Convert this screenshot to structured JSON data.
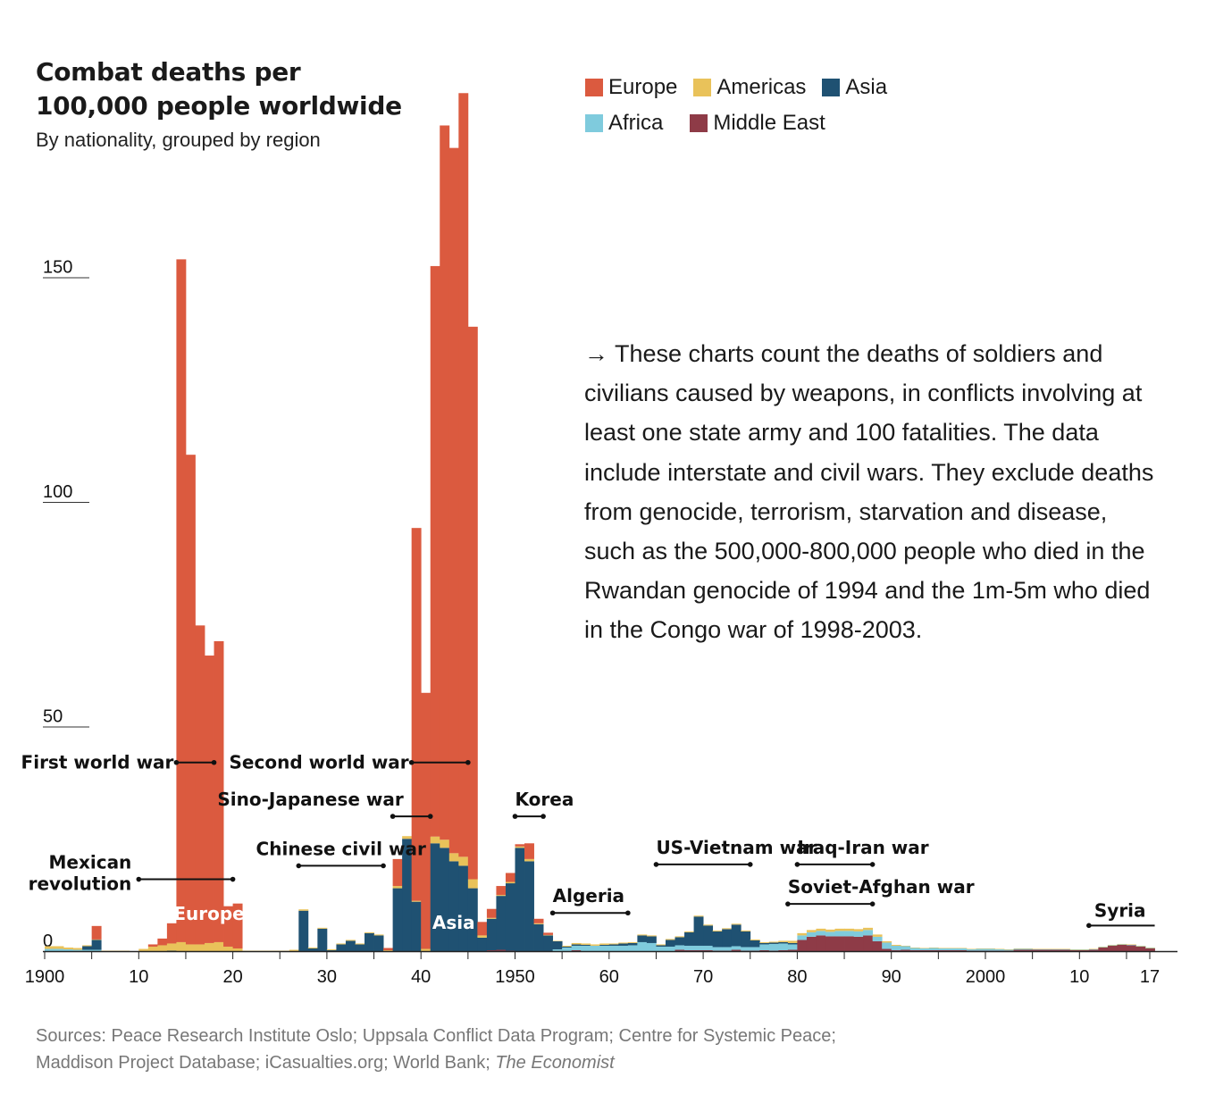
{
  "title": "Combat deaths per 100,000 people worldwide",
  "subtitle": "By nationality, grouped by region",
  "legend": [
    {
      "name": "Europe",
      "color": "#db5a3f"
    },
    {
      "name": "Americas",
      "color": "#e9c25a"
    },
    {
      "name": "Asia",
      "color": "#1f5172"
    },
    {
      "name": "Africa",
      "color": "#7fcbdd"
    },
    {
      "name": "Middle East",
      "color": "#8e3b47"
    }
  ],
  "note": "→ These charts count the deaths of soldiers and civilians caused by weapons, in conflicts involving at least one state army and 100 fatalities. The data include interstate and civil wars. They exclude deaths from genocide, terrorism, starvation and disease, such as the 500,000-800,000 people who died in the Rwandan genocide of 1994 and the 1m-5m who died in the Congo war of 1998-2003.",
  "sources_text": "Sources: Peace Research Institute Oslo; Uppsala Conflict Data Program; Centre for Systemic Peace; Maddison Project Database; iCasualties.org; World Bank; ",
  "sources_italic": "The Economist",
  "chart_data": {
    "type": "bar",
    "stacked": true,
    "x_start": 1900,
    "x_end": 2017,
    "ylim": [
      0,
      160
    ],
    "y_ticks": [
      0,
      50,
      100,
      150
    ],
    "x_ticks": [
      {
        "year": 1900,
        "label": "1900"
      },
      {
        "year": 1910,
        "label": "10"
      },
      {
        "year": 1920,
        "label": "20"
      },
      {
        "year": 1930,
        "label": "30"
      },
      {
        "year": 1940,
        "label": "40"
      },
      {
        "year": 1950,
        "label": "1950"
      },
      {
        "year": 1960,
        "label": "60"
      },
      {
        "year": 1970,
        "label": "70"
      },
      {
        "year": 1980,
        "label": "80"
      },
      {
        "year": 1990,
        "label": "90"
      },
      {
        "year": 2000,
        "label": "2000"
      },
      {
        "year": 2010,
        "label": "10"
      },
      {
        "year": 2017,
        "label": "17"
      }
    ],
    "years": [
      1900,
      1901,
      1902,
      1903,
      1904,
      1905,
      1906,
      1907,
      1908,
      1909,
      1910,
      1911,
      1912,
      1913,
      1914,
      1915,
      1916,
      1917,
      1918,
      1919,
      1920,
      1921,
      1922,
      1923,
      1924,
      1925,
      1926,
      1927,
      1928,
      1929,
      1930,
      1931,
      1932,
      1933,
      1934,
      1935,
      1936,
      1937,
      1938,
      1939,
      1940,
      1941,
      1942,
      1943,
      1944,
      1945,
      1946,
      1947,
      1948,
      1949,
      1950,
      1951,
      1952,
      1953,
      1954,
      1955,
      1956,
      1957,
      1958,
      1959,
      1960,
      1961,
      1962,
      1963,
      1964,
      1965,
      1966,
      1967,
      1968,
      1969,
      1970,
      1971,
      1972,
      1973,
      1974,
      1975,
      1976,
      1977,
      1978,
      1979,
      1980,
      1981,
      1982,
      1983,
      1984,
      1985,
      1986,
      1987,
      1988,
      1989,
      1990,
      1991,
      1992,
      1993,
      1994,
      1995,
      1996,
      1997,
      1998,
      1999,
      2000,
      2001,
      2002,
      2003,
      2004,
      2005,
      2006,
      2007,
      2008,
      2009,
      2010,
      2011,
      2012,
      2013,
      2014,
      2015,
      2016,
      2017
    ],
    "series": [
      {
        "name": "Middle East",
        "values": [
          0,
          0,
          0,
          0,
          0,
          0,
          0,
          0,
          0,
          0,
          0,
          0,
          0,
          0,
          0,
          0,
          0,
          0,
          0,
          0,
          0,
          0,
          0,
          0,
          0,
          0,
          0,
          0,
          0,
          0,
          0,
          0,
          0,
          0,
          0,
          0,
          0,
          0,
          0,
          0,
          0,
          0,
          0,
          0,
          0,
          0,
          0,
          0.2,
          0.3,
          0.1,
          0,
          0,
          0,
          0,
          0,
          0,
          0.2,
          0,
          0,
          0,
          0,
          0,
          0,
          0,
          0,
          0,
          0,
          0.3,
          0.2,
          0.2,
          0.2,
          0.1,
          0.1,
          0.3,
          0.1,
          0.1,
          0.2,
          0.1,
          0.2,
          0.3,
          2.5,
          3.2,
          3.5,
          3.3,
          3.3,
          3.3,
          3.2,
          3.5,
          2.2,
          0.5,
          0.2,
          0.3,
          0.2,
          0.2,
          0.2,
          0.2,
          0.2,
          0.2,
          0.1,
          0.1,
          0.1,
          0.1,
          0.1,
          0.3,
          0.3,
          0.3,
          0.3,
          0.3,
          0.3,
          0.2,
          0.2,
          0.3,
          0.8,
          1.2,
          1.4,
          1.3,
          1.0,
          0.6
        ]
      },
      {
        "name": "Africa",
        "values": [
          0.5,
          0.5,
          0.4,
          0.3,
          0.3,
          0.3,
          0,
          0,
          0,
          0,
          0,
          0,
          0,
          0,
          0,
          0,
          0,
          0,
          0,
          0,
          0,
          0,
          0,
          0,
          0,
          0,
          0,
          0,
          0,
          0,
          0,
          0,
          0,
          0,
          0,
          0,
          0,
          0,
          0,
          0,
          0,
          0,
          0,
          0,
          0,
          0,
          0,
          0,
          0,
          0,
          0,
          0,
          0,
          0,
          0.4,
          0.8,
          1.0,
          1.2,
          1.2,
          1.2,
          1.2,
          1.2,
          1.3,
          2.0,
          1.8,
          1.0,
          1.0,
          1.0,
          1.0,
          1.0,
          1.0,
          0.8,
          0.8,
          0.8,
          0.8,
          0.8,
          1.3,
          1.5,
          1.5,
          1.2,
          1.0,
          1.0,
          1.0,
          1.0,
          1.2,
          1.2,
          1.2,
          1.2,
          1.0,
          1.4,
          1.0,
          0.8,
          0.5,
          0.4,
          0.5,
          0.4,
          0.4,
          0.4,
          0.3,
          0.4,
          0.4,
          0.3,
          0.2,
          0.2,
          0.2,
          0.1,
          0.1,
          0.1,
          0.1,
          0.1,
          0.1,
          0.1,
          0.1,
          0.1,
          0.1,
          0.1,
          0.1,
          0.1
        ]
      },
      {
        "name": "Asia",
        "values": [
          0,
          0,
          0,
          0,
          0.8,
          2.2,
          0,
          0,
          0,
          0,
          0,
          0,
          0,
          0.1,
          0,
          0,
          0,
          0,
          0,
          0,
          0,
          0,
          0,
          0,
          0,
          0,
          0,
          9,
          0.6,
          5,
          0.2,
          1.5,
          2.3,
          1.5,
          4,
          3.5,
          0,
          14,
          25,
          11,
          0,
          24,
          23,
          20,
          19,
          14,
          3,
          7,
          12,
          15,
          23,
          20,
          6,
          3.5,
          1.8,
          0.2,
          0.3,
          0.2,
          0,
          0.2,
          0.3,
          0.5,
          0.5,
          1.5,
          1.5,
          0.3,
          1.5,
          1.8,
          3.0,
          6.5,
          4.5,
          3.5,
          4.0,
          4.8,
          3.5,
          1.5,
          0.3,
          0.3,
          0.3,
          0.3,
          0,
          0,
          0,
          0,
          0,
          0,
          0,
          0,
          0,
          0,
          0,
          0,
          0,
          0,
          0,
          0,
          0,
          0,
          0,
          0,
          0,
          0,
          0,
          0,
          0,
          0,
          0,
          0,
          0,
          0,
          0,
          0,
          0,
          0,
          0,
          0,
          0,
          0
        ]
      },
      {
        "name": "Americas",
        "values": [
          0.6,
          0.6,
          0.4,
          0.4,
          0.2,
          0.1,
          0.1,
          0.1,
          0.1,
          0,
          0.5,
          1.0,
          1.3,
          1.6,
          2.0,
          1.5,
          1.5,
          1.8,
          2.0,
          1.0,
          0.6,
          0.1,
          0.1,
          0.1,
          0.1,
          0.1,
          0.3,
          0.3,
          0.2,
          0.2,
          0.2,
          0.2,
          0.2,
          0.2,
          0.2,
          0.2,
          0.2,
          0.5,
          0.6,
          0.2,
          0.5,
          1.5,
          1.8,
          1.8,
          2.0,
          2.0,
          0.5,
          0.2,
          0.2,
          0.3,
          0.3,
          0.5,
          0.2,
          0.1,
          0.1,
          0.2,
          0.3,
          0.3,
          0.3,
          0.3,
          0.2,
          0.2,
          0.2,
          0.2,
          0.2,
          0.2,
          0.2,
          0.2,
          0.2,
          0.2,
          0.2,
          0.2,
          0.2,
          0.2,
          0.2,
          0.2,
          0.2,
          0.2,
          0.3,
          0.5,
          0.5,
          0.5,
          0.5,
          0.5,
          0.5,
          0.5,
          0.5,
          0.5,
          0.5,
          0.3,
          0.2,
          0.1,
          0.1,
          0.1,
          0.1,
          0.1,
          0.1,
          0.1,
          0.1,
          0.1,
          0.1,
          0.1,
          0.1,
          0.1,
          0.1,
          0.1,
          0.1,
          0.1,
          0.1,
          0.1,
          0.1,
          0.1,
          0.1,
          0.1,
          0.1,
          0.1,
          0.1,
          0.1
        ]
      },
      {
        "name": "Europe",
        "values": [
          0,
          0,
          0,
          0,
          0,
          3.0,
          0,
          0,
          0,
          0,
          0,
          0.5,
          1.5,
          4.5,
          152,
          109,
          71,
          64,
          67,
          9,
          10,
          0,
          0,
          0,
          0,
          0,
          0,
          0,
          0,
          0,
          0,
          0,
          0,
          0,
          0,
          0,
          0,
          0,
          0,
          0,
          0,
          0,
          0,
          0,
          0,
          0,
          0,
          0,
          0,
          0,
          0,
          0,
          0,
          0,
          0,
          0,
          0,
          0,
          0,
          0,
          0,
          0,
          0,
          0,
          0,
          0,
          0,
          0,
          0,
          0,
          0,
          0,
          0,
          0,
          0,
          0,
          0,
          0,
          0,
          0,
          0,
          0,
          0,
          0,
          0,
          0,
          0,
          0,
          0,
          0,
          0,
          0,
          0,
          0,
          0,
          0,
          0,
          0,
          0,
          0,
          0,
          0,
          0,
          0,
          0,
          0,
          0,
          0,
          0,
          0,
          0,
          0,
          0,
          0,
          0,
          0,
          0,
          0
        ]
      },
      {
        "name": "Europe_total_ww2",
        "values": []
      }
    ],
    "ww2_europe": [
      {
        "year": 1936,
        "value": 0.5
      },
      {
        "year": 1937,
        "value": 6
      },
      {
        "year": 1938,
        "value": 0
      },
      {
        "year": 1939,
        "value": 83
      },
      {
        "year": 1940,
        "value": 57
      },
      {
        "year": 1941,
        "value": 127
      },
      {
        "year": 1942,
        "value": 159
      },
      {
        "year": 1943,
        "value": 157
      },
      {
        "year": 1944,
        "value": 170
      },
      {
        "year": 1945,
        "value": 123
      },
      {
        "year": 1946,
        "value": 3
      },
      {
        "year": 1947,
        "value": 2
      },
      {
        "year": 1948,
        "value": 2
      },
      {
        "year": 1949,
        "value": 2
      },
      {
        "year": 1950,
        "value": 0.5
      },
      {
        "year": 1951,
        "value": 3.5
      },
      {
        "year": 1952,
        "value": 1
      },
      {
        "year": 1953,
        "value": 0.5
      }
    ],
    "area_labels": [
      {
        "text": "Europe",
        "year": 1917,
        "value": 7
      },
      {
        "text": "Asia",
        "year": 1943,
        "value": 5
      }
    ],
    "annotations": [
      {
        "label": "First world war",
        "from": 1914,
        "to": 1918,
        "value": 42
      },
      {
        "label": "Second world war",
        "from": 1939,
        "to": 1945,
        "value": 42
      },
      {
        "label": "Sino-Japanese war",
        "from": 1937,
        "to": 1941,
        "value": 30
      },
      {
        "label": "Korea",
        "from": 1950,
        "to": 1953,
        "value": 30
      },
      {
        "label": "Chinese civil war",
        "from": 1927,
        "to": 1936,
        "value": 19
      },
      {
        "label": "US-Vietnam war",
        "from": 1965,
        "to": 1975,
        "value": 19.3
      },
      {
        "label": "Iraq-Iran war",
        "from": 1980,
        "to": 1988,
        "value": 19.3
      },
      {
        "label": "Mexican",
        "label2": "revolution",
        "from": 1910,
        "to": 1920,
        "value": 16
      },
      {
        "label": "Algeria",
        "from": 1954,
        "to": 1962,
        "value": 8.5
      },
      {
        "label": "Soviet-Afghan war",
        "from": 1979,
        "to": 1988,
        "value": 10.5
      },
      {
        "label": "Syria",
        "from": 2011,
        "to": 2018,
        "value": 5.7
      }
    ]
  }
}
